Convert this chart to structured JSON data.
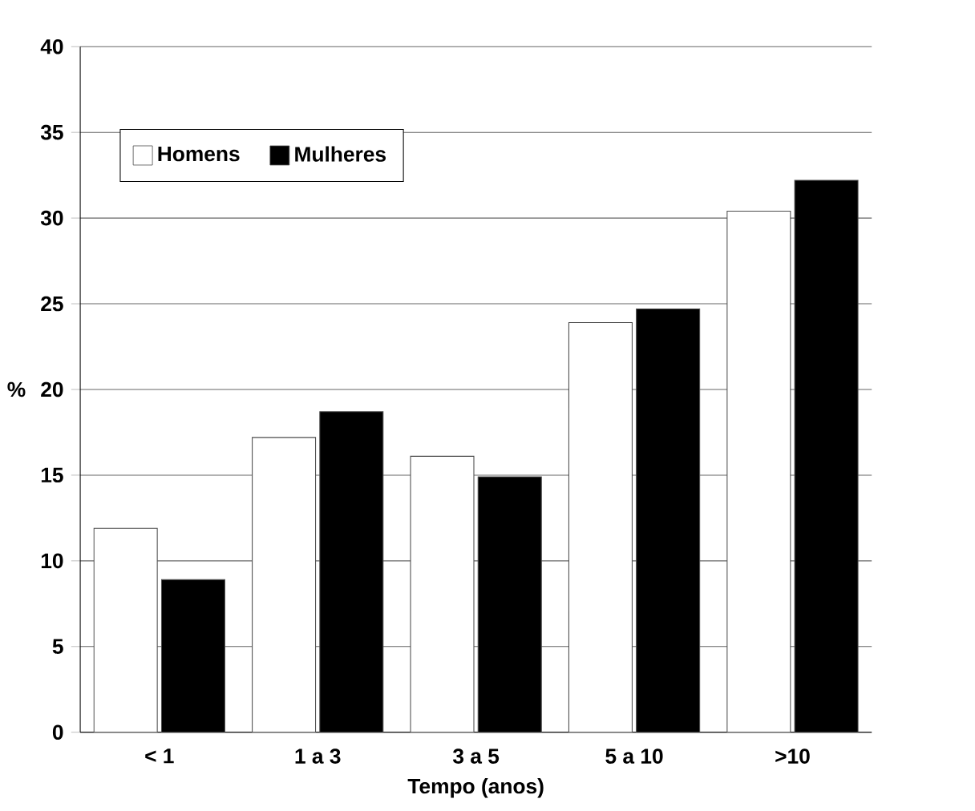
{
  "chart_data": {
    "type": "bar",
    "xlabel": "Tempo (anos)",
    "ylabel": "%",
    "categories": [
      "< 1",
      "1 a 3",
      "3 a 5",
      "5 a 10",
      ">10"
    ],
    "series": [
      {
        "name": "Homens",
        "color": "#ffffff",
        "values": [
          11.9,
          17.2,
          16.1,
          23.9,
          30.4
        ]
      },
      {
        "name": "Mulheres",
        "color": "#000000",
        "values": [
          8.9,
          18.7,
          14.9,
          24.7,
          32.2
        ]
      }
    ],
    "ylim": [
      0,
      40
    ],
    "yticks": [
      0,
      5,
      10,
      15,
      20,
      25,
      30,
      35,
      40
    ],
    "grid": "y",
    "legend": "top left"
  }
}
